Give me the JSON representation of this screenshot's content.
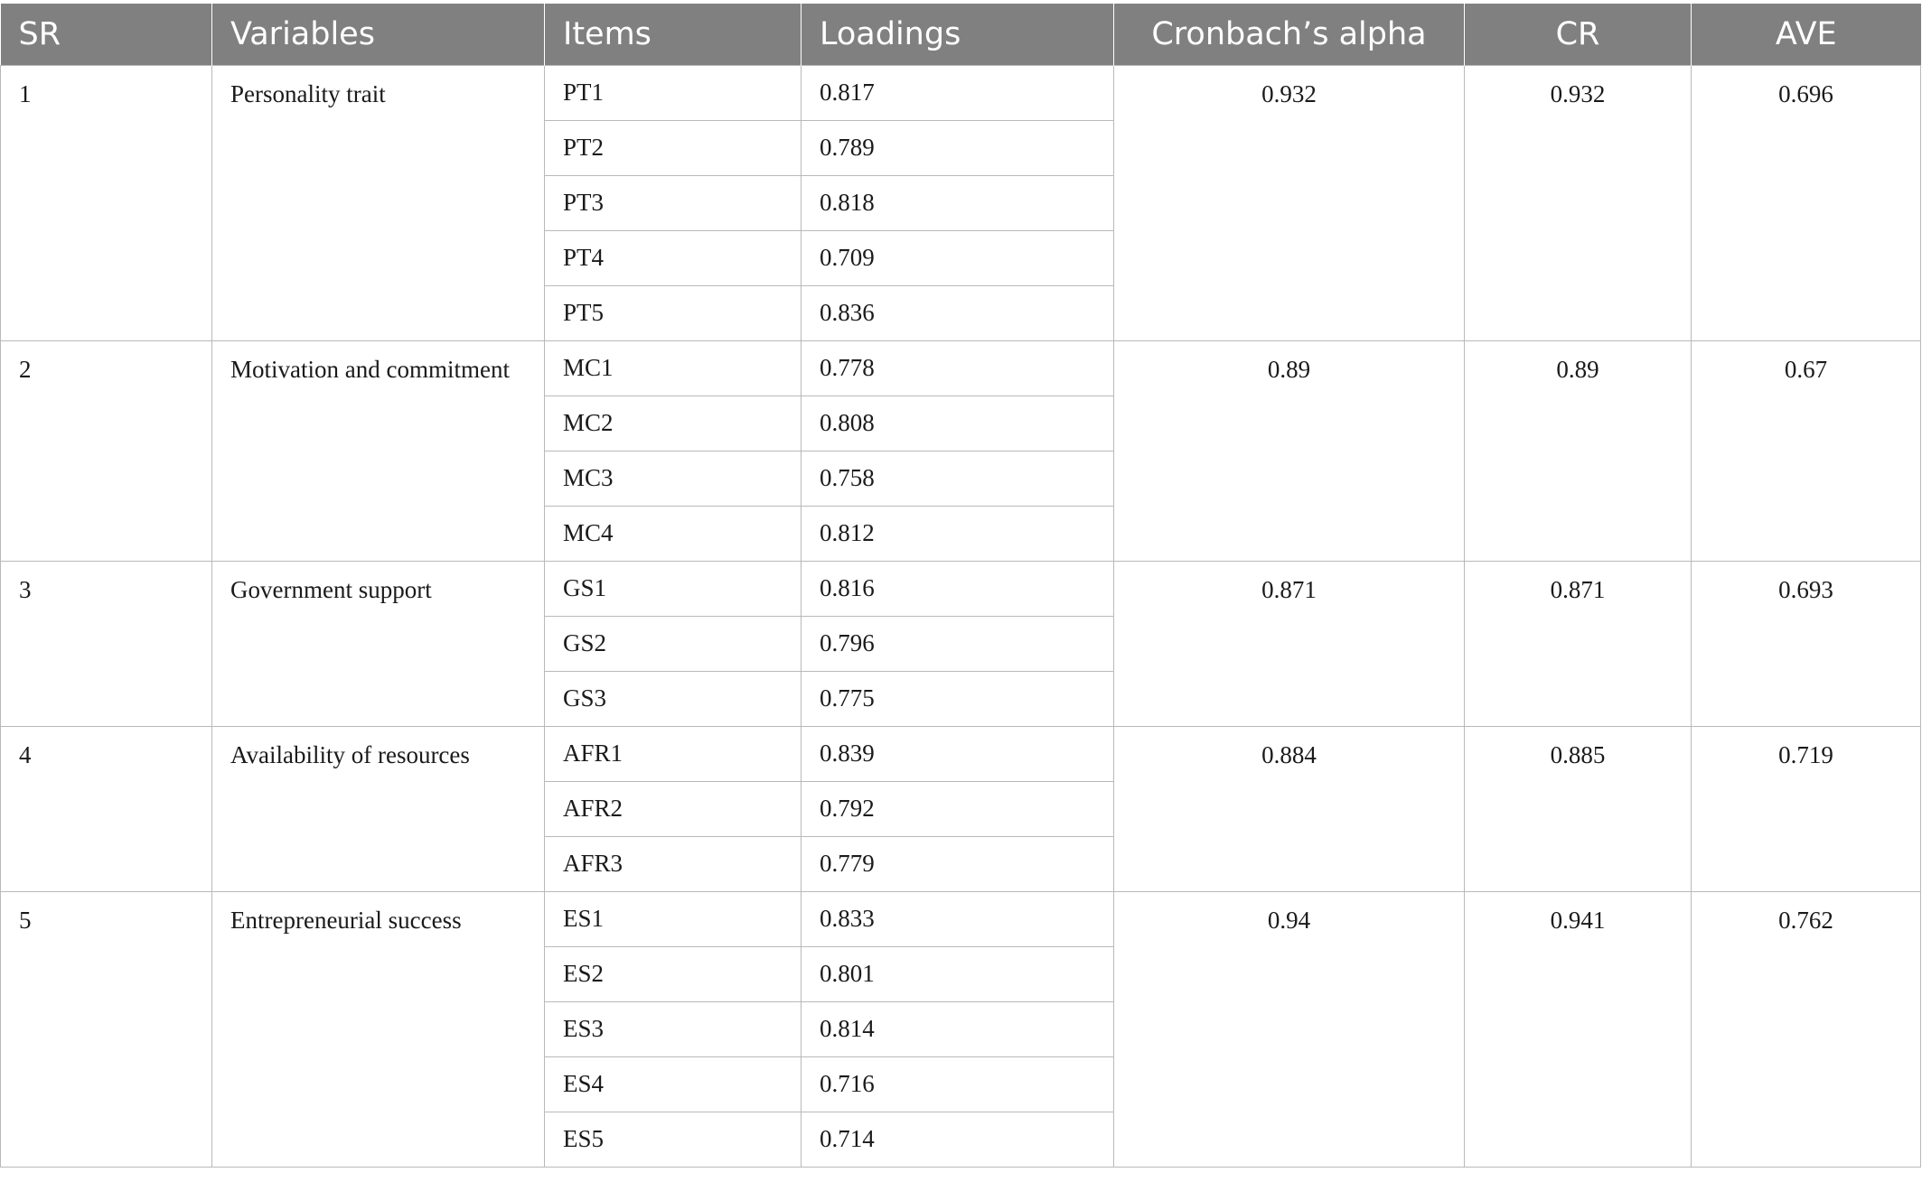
{
  "table": {
    "headers": [
      "SR",
      "Variables",
      "Items",
      "Loadings",
      "Cronbach’s alpha",
      "CR",
      "AVE"
    ],
    "groups": [
      {
        "sr": "1",
        "variable": "Personality trait",
        "items": [
          [
            "PT1",
            "0.817"
          ],
          [
            "PT2",
            "0.789"
          ],
          [
            "PT3",
            "0.818"
          ],
          [
            "PT4",
            "0.709"
          ],
          [
            "PT5",
            "0.836"
          ]
        ],
        "alpha": "0.932",
        "cr": "0.932",
        "ave": "0.696"
      },
      {
        "sr": "2",
        "variable": "Motivation and commitment",
        "items": [
          [
            "MC1",
            "0.778"
          ],
          [
            "MC2",
            "0.808"
          ],
          [
            "MC3",
            "0.758"
          ],
          [
            "MC4",
            "0.812"
          ]
        ],
        "alpha": "0.89",
        "cr": "0.89",
        "ave": "0.67"
      },
      {
        "sr": "3",
        "variable": "Government support",
        "items": [
          [
            "GS1",
            "0.816"
          ],
          [
            "GS2",
            "0.796"
          ],
          [
            "GS3",
            "0.775"
          ]
        ],
        "alpha": "0.871",
        "cr": "0.871",
        "ave": "0.693"
      },
      {
        "sr": "4",
        "variable": "Availability of resources",
        "items": [
          [
            "AFR1",
            "0.839"
          ],
          [
            "AFR2",
            "0.792"
          ],
          [
            "AFR3",
            "0.779"
          ]
        ],
        "alpha": "0.884",
        "cr": "0.885",
        "ave": "0.719"
      },
      {
        "sr": "5",
        "variable": "Entrepreneurial success",
        "items": [
          [
            "ES1",
            "0.833"
          ],
          [
            "ES2",
            "0.801"
          ],
          [
            "ES3",
            "0.814"
          ],
          [
            "ES4",
            "0.716"
          ],
          [
            "ES5",
            "0.714"
          ]
        ],
        "alpha": "0.94",
        "cr": "0.941",
        "ave": "0.762"
      }
    ]
  }
}
